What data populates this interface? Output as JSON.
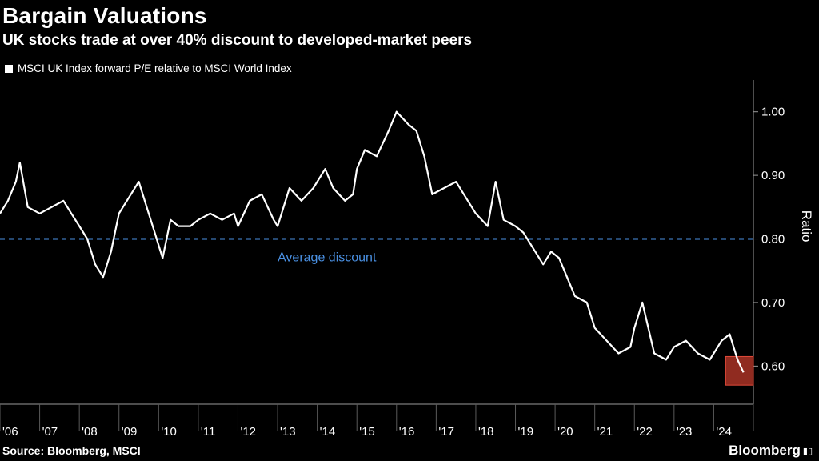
{
  "header": {
    "title": "Bargain Valuations",
    "subtitle": "UK stocks trade at over 40% discount to developed-market peers"
  },
  "footer": {
    "source": "Source: Bloomberg, MSCI",
    "brand": "Bloomberg"
  },
  "colors": {
    "line": "#ffffff",
    "average": "#4a90e2",
    "highlight": "#c0392b",
    "background": "#000000"
  },
  "chart_data": {
    "type": "line",
    "ylabel": "Ratio",
    "ylim": [
      0.54,
      1.05
    ],
    "y_ticks": [
      0.6,
      0.7,
      0.8,
      0.9,
      1.0
    ],
    "y_tick_labels": [
      "0.60",
      "0.70",
      "0.80",
      "0.90",
      "1.00"
    ],
    "x_range": [
      2006.0,
      2025.0
    ],
    "x_tick_labels": [
      "'06",
      "'07",
      "'08",
      "'09",
      "'10",
      "'11",
      "'12",
      "'13",
      "'14",
      "'15",
      "'16",
      "'17",
      "'18",
      "'19",
      "'20",
      "'21",
      "'22",
      "'23",
      "'24"
    ],
    "series": [
      {
        "name": "MSCI UK Index forward P/E relative to MSCI World Index",
        "x": [
          2006.0,
          2006.2,
          2006.4,
          2006.5,
          2006.7,
          2007.0,
          2007.3,
          2007.6,
          2007.8,
          2008.0,
          2008.2,
          2008.4,
          2008.6,
          2008.8,
          2009.0,
          2009.3,
          2009.5,
          2009.7,
          2009.9,
          2010.0,
          2010.1,
          2010.3,
          2010.5,
          2010.8,
          2011.0,
          2011.3,
          2011.6,
          2011.9,
          2012.0,
          2012.3,
          2012.6,
          2012.9,
          2013.0,
          2013.3,
          2013.6,
          2013.9,
          2014.2,
          2014.4,
          2014.7,
          2014.9,
          2015.0,
          2015.2,
          2015.5,
          2015.8,
          2016.0,
          2016.3,
          2016.5,
          2016.7,
          2016.9,
          2017.2,
          2017.5,
          2017.8,
          2018.0,
          2018.3,
          2018.5,
          2018.7,
          2019.0,
          2019.2,
          2019.5,
          2019.7,
          2019.9,
          2020.1,
          2020.3,
          2020.5,
          2020.8,
          2021.0,
          2021.3,
          2021.6,
          2021.9,
          2022.0,
          2022.2,
          2022.5,
          2022.8,
          2023.0,
          2023.3,
          2023.6,
          2023.9,
          2024.2,
          2024.4,
          2024.6,
          2024.75
        ],
        "values": [
          0.84,
          0.86,
          0.89,
          0.92,
          0.85,
          0.84,
          0.85,
          0.86,
          0.84,
          0.82,
          0.8,
          0.76,
          0.74,
          0.78,
          0.84,
          0.87,
          0.89,
          0.85,
          0.81,
          0.79,
          0.77,
          0.83,
          0.82,
          0.82,
          0.83,
          0.84,
          0.83,
          0.84,
          0.82,
          0.86,
          0.87,
          0.83,
          0.82,
          0.88,
          0.86,
          0.88,
          0.91,
          0.88,
          0.86,
          0.87,
          0.91,
          0.94,
          0.93,
          0.97,
          1.0,
          0.98,
          0.97,
          0.93,
          0.87,
          0.88,
          0.89,
          0.86,
          0.84,
          0.82,
          0.89,
          0.83,
          0.82,
          0.81,
          0.78,
          0.76,
          0.78,
          0.77,
          0.74,
          0.71,
          0.7,
          0.66,
          0.64,
          0.62,
          0.63,
          0.66,
          0.7,
          0.62,
          0.61,
          0.63,
          0.64,
          0.62,
          0.61,
          0.64,
          0.65,
          0.61,
          0.59
        ]
      }
    ],
    "reference_lines": [
      {
        "label": "Average discount",
        "y": 0.8
      }
    ],
    "highlight_region": {
      "x": [
        2024.3,
        2025.0
      ],
      "y": [
        0.57,
        0.615
      ]
    },
    "grid": false,
    "legend_position": "top-left"
  }
}
